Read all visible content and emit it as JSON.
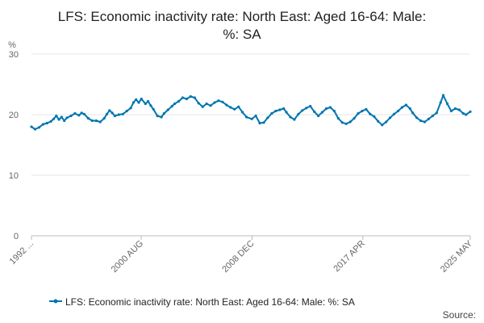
{
  "chart_data": {
    "type": "line",
    "title": "LFS: Economic inactivity rate: North East: Aged 16-64: Male: %: SA",
    "title_lines": [
      "LFS: Economic inactivity rate: North East: Aged 16-64: Male:",
      "%: SA"
    ],
    "ylabel": "%",
    "ylim": [
      0,
      30
    ],
    "yticks": [
      0,
      10,
      20,
      30
    ],
    "ytick_labels": [
      "0",
      "10",
      "20",
      "30"
    ],
    "x_start": "1992 MAY",
    "x_end": "2025 MAY",
    "xtick_labels": [
      "1992 ...",
      "2000 AUG",
      "2008 DEC",
      "2017 APR",
      "2025 MAY"
    ],
    "xtick_years": [
      1992.33,
      2000.58,
      2008.92,
      2017.25,
      2025.33
    ],
    "grid": true,
    "legend": "bottom-center",
    "source_label": "Source:",
    "color": "#0075b0",
    "series": [
      {
        "name": "LFS: Economic inactivity rate: North East: Aged 16-64: Male: %: SA",
        "points": [
          [
            1992.33,
            18.0
          ],
          [
            1992.6,
            17.6
          ],
          [
            1992.9,
            17.9
          ],
          [
            1993.2,
            18.4
          ],
          [
            1993.5,
            18.6
          ],
          [
            1993.8,
            18.9
          ],
          [
            1994.0,
            19.3
          ],
          [
            1994.2,
            19.8
          ],
          [
            1994.4,
            19.2
          ],
          [
            1994.6,
            19.6
          ],
          [
            1994.8,
            19.0
          ],
          [
            1995.0,
            19.5
          ],
          [
            1995.3,
            19.8
          ],
          [
            1995.6,
            20.2
          ],
          [
            1995.9,
            19.9
          ],
          [
            1996.1,
            20.3
          ],
          [
            1996.3,
            20.1
          ],
          [
            1996.6,
            19.4
          ],
          [
            1996.9,
            19.0
          ],
          [
            1997.2,
            19.0
          ],
          [
            1997.5,
            18.8
          ],
          [
            1997.8,
            19.4
          ],
          [
            1998.0,
            20.1
          ],
          [
            1998.2,
            20.7
          ],
          [
            1998.4,
            20.3
          ],
          [
            1998.6,
            19.8
          ],
          [
            1998.9,
            20.0
          ],
          [
            1999.2,
            20.1
          ],
          [
            1999.5,
            20.6
          ],
          [
            1999.8,
            21.1
          ],
          [
            2000.0,
            22.0
          ],
          [
            2000.2,
            22.5
          ],
          [
            2000.4,
            22.0
          ],
          [
            2000.6,
            22.6
          ],
          [
            2000.9,
            21.8
          ],
          [
            2001.1,
            22.2
          ],
          [
            2001.3,
            21.5
          ],
          [
            2001.5,
            20.9
          ],
          [
            2001.8,
            19.8
          ],
          [
            2002.1,
            19.6
          ],
          [
            2002.3,
            20.2
          ],
          [
            2002.6,
            20.8
          ],
          [
            2002.9,
            21.4
          ],
          [
            2003.1,
            21.8
          ],
          [
            2003.4,
            22.2
          ],
          [
            2003.7,
            22.8
          ],
          [
            2004.0,
            22.6
          ],
          [
            2004.3,
            23.0
          ],
          [
            2004.6,
            22.8
          ],
          [
            2004.9,
            21.9
          ],
          [
            2005.2,
            21.3
          ],
          [
            2005.5,
            21.8
          ],
          [
            2005.8,
            21.5
          ],
          [
            2006.1,
            22.0
          ],
          [
            2006.4,
            22.3
          ],
          [
            2006.7,
            22.1
          ],
          [
            2007.0,
            21.6
          ],
          [
            2007.3,
            21.2
          ],
          [
            2007.6,
            20.9
          ],
          [
            2007.9,
            21.3
          ],
          [
            2008.2,
            20.4
          ],
          [
            2008.5,
            19.6
          ],
          [
            2008.9,
            19.3
          ],
          [
            2009.2,
            19.8
          ],
          [
            2009.5,
            18.6
          ],
          [
            2009.8,
            18.7
          ],
          [
            2010.1,
            19.5
          ],
          [
            2010.4,
            20.2
          ],
          [
            2010.7,
            20.6
          ],
          [
            2011.0,
            20.8
          ],
          [
            2011.3,
            21.0
          ],
          [
            2011.5,
            20.4
          ],
          [
            2011.8,
            19.6
          ],
          [
            2012.1,
            19.2
          ],
          [
            2012.4,
            20.1
          ],
          [
            2012.7,
            20.7
          ],
          [
            2013.0,
            21.1
          ],
          [
            2013.3,
            21.4
          ],
          [
            2013.6,
            20.5
          ],
          [
            2013.9,
            19.8
          ],
          [
            2014.2,
            20.4
          ],
          [
            2014.5,
            21.0
          ],
          [
            2014.8,
            21.2
          ],
          [
            2015.1,
            20.6
          ],
          [
            2015.4,
            19.4
          ],
          [
            2015.7,
            18.7
          ],
          [
            2016.0,
            18.5
          ],
          [
            2016.3,
            18.8
          ],
          [
            2016.6,
            19.4
          ],
          [
            2016.9,
            20.2
          ],
          [
            2017.2,
            20.6
          ],
          [
            2017.5,
            20.9
          ],
          [
            2017.8,
            20.1
          ],
          [
            2018.1,
            19.7
          ],
          [
            2018.4,
            18.9
          ],
          [
            2018.7,
            18.3
          ],
          [
            2019.0,
            18.8
          ],
          [
            2019.3,
            19.5
          ],
          [
            2019.6,
            20.1
          ],
          [
            2019.9,
            20.6
          ],
          [
            2020.2,
            21.2
          ],
          [
            2020.5,
            21.6
          ],
          [
            2020.8,
            21.0
          ],
          [
            2021.0,
            20.3
          ],
          [
            2021.3,
            19.5
          ],
          [
            2021.6,
            19.0
          ],
          [
            2021.9,
            18.8
          ],
          [
            2022.2,
            19.3
          ],
          [
            2022.5,
            19.8
          ],
          [
            2022.8,
            20.3
          ],
          [
            2023.1,
            22.0
          ],
          [
            2023.3,
            23.2
          ],
          [
            2023.6,
            21.8
          ],
          [
            2023.9,
            20.6
          ],
          [
            2024.2,
            21.0
          ],
          [
            2024.5,
            20.8
          ],
          [
            2024.8,
            20.2
          ],
          [
            2025.0,
            20.0
          ],
          [
            2025.33,
            20.5
          ]
        ]
      }
    ]
  }
}
